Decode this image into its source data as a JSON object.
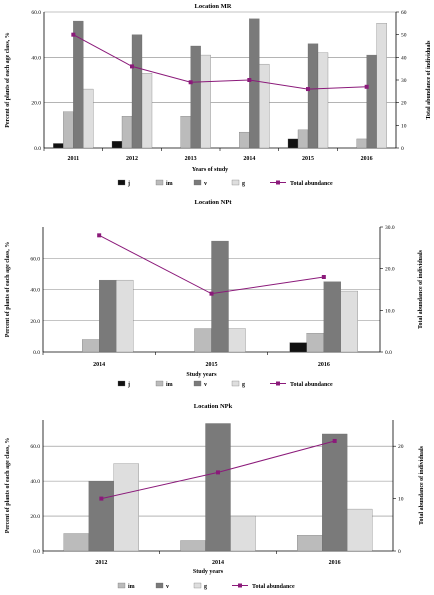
{
  "colors": {
    "j": "#111111",
    "im": "#bbbbbb",
    "v": "#7a7a7a",
    "g": "#dedede",
    "total": "#8b1a7a",
    "grid": "#888888",
    "axis": "#000000"
  },
  "chart_data": [
    {
      "type": "bar",
      "title": "Location MR",
      "xlabel": "Years of study",
      "ylabel": "Percent of plants of each age class, %",
      "y2label": "Total abundance of individuals",
      "categories": [
        "2011",
        "2012",
        "2013",
        "2014",
        "2015",
        "2016"
      ],
      "ylim": [
        0,
        60
      ],
      "yticks": [
        "0.0",
        "20.0",
        "40.0",
        "60.0"
      ],
      "y2lim": [
        0,
        60
      ],
      "y2ticks": [
        "0",
        "10",
        "20",
        "30",
        "40",
        "50",
        "60"
      ],
      "grid": true,
      "legend_position": "bottom",
      "series": [
        {
          "name": "j",
          "key": "j",
          "values": [
            2,
            3,
            0,
            0,
            4,
            0
          ]
        },
        {
          "name": "im",
          "key": "im",
          "values": [
            16,
            14,
            14,
            7,
            8,
            4
          ]
        },
        {
          "name": "v",
          "key": "v",
          "values": [
            56,
            50,
            45,
            57,
            46,
            41
          ]
        },
        {
          "name": "g",
          "key": "g",
          "values": [
            26,
            33,
            41,
            37,
            42,
            55
          ]
        }
      ],
      "line": {
        "name": "Total abundance",
        "key": "total",
        "values": [
          50,
          36,
          29,
          30,
          26,
          27
        ]
      }
    },
    {
      "type": "bar",
      "title": "Location NPt",
      "xlabel": "Study years",
      "ylabel": "Percent of plants of each age class, %",
      "y2label": "Total abundance of individuals",
      "categories": [
        "2014",
        "2015",
        "2016"
      ],
      "ylim": [
        0,
        80
      ],
      "yticks": [
        "0.0",
        "20.0",
        "40.0",
        "60.0"
      ],
      "y2lim": [
        0,
        30
      ],
      "y2ticks": [
        "0.0",
        "10.0",
        "20.0",
        "30.0"
      ],
      "grid": true,
      "legend_position": "bottom",
      "series": [
        {
          "name": "j",
          "key": "j",
          "values": [
            0,
            0,
            6
          ]
        },
        {
          "name": "im",
          "key": "im",
          "values": [
            8,
            15,
            12
          ]
        },
        {
          "name": "v",
          "key": "v",
          "values": [
            46,
            71,
            45
          ]
        },
        {
          "name": "g",
          "key": "g",
          "values": [
            46,
            15,
            39
          ]
        }
      ],
      "line": {
        "name": "Total abundance",
        "key": "total",
        "values": [
          28,
          14,
          18
        ]
      }
    },
    {
      "type": "bar",
      "title": "Location NPk",
      "xlabel": "Study years",
      "ylabel": "Percent of plants of each age class, %",
      "y2label": "Total abundance of individuals",
      "categories": [
        "2012",
        "2014",
        "2016"
      ],
      "ylim": [
        0,
        75
      ],
      "yticks": [
        "0.0",
        "20.0",
        "40.0",
        "60.0"
      ],
      "y2lim": [
        0,
        25
      ],
      "y2ticks": [
        "0",
        "10",
        "20"
      ],
      "grid": true,
      "legend_position": "bottom",
      "series": [
        {
          "name": "im",
          "key": "im",
          "values": [
            10,
            6,
            9
          ]
        },
        {
          "name": "v",
          "key": "v",
          "values": [
            40,
            73,
            67
          ]
        },
        {
          "name": "g",
          "key": "g",
          "values": [
            50,
            20,
            24
          ]
        }
      ],
      "line": {
        "name": "Total abundance",
        "key": "total",
        "values": [
          10,
          15,
          21
        ]
      }
    }
  ]
}
